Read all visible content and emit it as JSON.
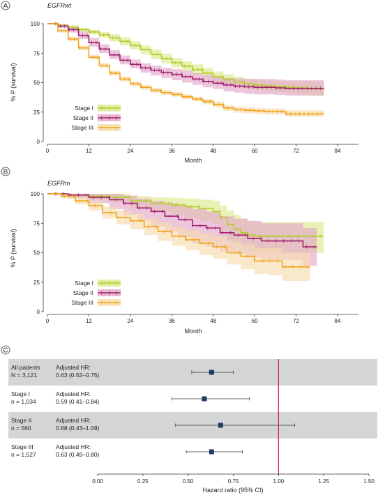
{
  "colors": {
    "stage_i": "#b5cc2a",
    "stage_ii": "#a0206a",
    "stage_iii": "#f2a31b",
    "band_i": "#dde98f",
    "band_ii": "#e3a8cb",
    "band_iii": "#f6dcae",
    "forest_band": "#d4d6d6",
    "forest_marker": "#1e3b66",
    "reference_line": "#c8197a"
  },
  "chart_data": [
    {
      "type": "line",
      "panel_label": "A",
      "title": "EGFRwt",
      "xlabel": "Month",
      "ylabel": "% P (survival)",
      "xlim": [
        0,
        84
      ],
      "ylim": [
        0,
        100
      ],
      "xticks": [
        0,
        12,
        24,
        36,
        48,
        60,
        72,
        84
      ],
      "yticks": [
        0,
        25,
        50,
        75,
        100
      ],
      "legend_position": "lower-left",
      "series": [
        {
          "name": "Stage I",
          "x": [
            0,
            3,
            6,
            9,
            12,
            15,
            18,
            21,
            24,
            27,
            30,
            33,
            36,
            39,
            42,
            45,
            48,
            51,
            54,
            57,
            60,
            63,
            66,
            69,
            72,
            75,
            78,
            80
          ],
          "y": [
            100,
            98.5,
            97,
            95,
            93,
            90.5,
            88,
            85,
            81.5,
            78,
            74,
            70.5,
            67,
            64,
            61,
            58,
            55,
            52.5,
            50.5,
            49,
            48,
            47,
            46.5,
            46,
            45.5,
            45,
            45,
            44
          ],
          "ci_lower": [
            100,
            97.5,
            96,
            93.5,
            91,
            88,
            85,
            81.5,
            78,
            74,
            70,
            66.5,
            63,
            59.5,
            56.5,
            53.5,
            50.5,
            48,
            46,
            44.5,
            43.5,
            42.5,
            42,
            41,
            40,
            39,
            38.5,
            38
          ],
          "ci_upper": [
            100,
            99.5,
            98.5,
            96.5,
            95,
            93,
            91,
            88.5,
            85,
            81.5,
            78,
            74.5,
            71,
            68,
            65.5,
            62.5,
            59.5,
            57,
            55,
            53.5,
            52.5,
            51.5,
            51,
            51,
            51,
            51,
            51,
            50
          ]
        },
        {
          "name": "Stage II",
          "x": [
            0,
            3,
            6,
            9,
            12,
            15,
            18,
            21,
            24,
            27,
            30,
            33,
            36,
            39,
            42,
            45,
            48,
            51,
            54,
            57,
            60,
            63,
            66,
            69,
            72,
            75,
            78,
            80
          ],
          "y": [
            100,
            98,
            95,
            90,
            84,
            78.5,
            73.5,
            69,
            65.5,
            62.5,
            60.5,
            58.5,
            57,
            55,
            53,
            51,
            49.5,
            48,
            47,
            46.5,
            46,
            46,
            45.5,
            45,
            45,
            45,
            45,
            45
          ],
          "ci_lower": [
            100,
            96.5,
            92.5,
            87,
            80.5,
            75,
            70,
            65.5,
            62,
            58.5,
            56,
            54,
            52,
            50,
            48,
            46,
            44.5,
            42.5,
            41.5,
            40.5,
            40,
            40,
            39.5,
            39,
            39,
            39,
            39,
            39
          ],
          "ci_upper": [
            100,
            99.5,
            97.5,
            93.5,
            88,
            82.5,
            77.5,
            73,
            69.5,
            66.5,
            64.5,
            62.5,
            61.5,
            60,
            58,
            56.5,
            55,
            54,
            53.5,
            53,
            53,
            53,
            52.5,
            52,
            52,
            52,
            52,
            52
          ]
        },
        {
          "name": "Stage III",
          "x": [
            0,
            3,
            6,
            9,
            12,
            15,
            18,
            21,
            24,
            27,
            30,
            33,
            36,
            39,
            42,
            45,
            48,
            51,
            54,
            57,
            60,
            63,
            66,
            69,
            72,
            75,
            78,
            80
          ],
          "y": [
            100,
            94,
            87,
            79.5,
            71.5,
            64.5,
            58,
            53,
            49,
            46,
            43.5,
            41.5,
            40,
            38,
            36,
            34,
            31.5,
            28.5,
            27,
            26.5,
            26,
            25.5,
            25.5,
            23.5,
            23.5,
            23.5,
            23.5,
            23.5
          ],
          "ci_lower": [
            100,
            92.5,
            85,
            77.5,
            69.5,
            62.5,
            56,
            51,
            47,
            44,
            41.5,
            39.5,
            38,
            36,
            34,
            31.5,
            29,
            26,
            24.5,
            24,
            23.5,
            23,
            23,
            21,
            21,
            21,
            21,
            21
          ],
          "ci_upper": [
            100,
            95.5,
            89,
            81.5,
            73.5,
            66.5,
            60,
            55,
            51,
            48,
            45.5,
            43.5,
            42,
            40,
            38,
            36,
            34,
            31,
            29.5,
            29,
            28.5,
            28,
            28,
            26.5,
            26.5,
            26.5,
            26.5,
            26.5
          ]
        }
      ]
    },
    {
      "type": "line",
      "panel_label": "B",
      "title": "EGFRm",
      "xlabel": "Month",
      "ylabel": "% P (survival)",
      "xlim": [
        0,
        84
      ],
      "ylim": [
        0,
        100
      ],
      "xticks": [
        0,
        12,
        24,
        36,
        48,
        60,
        72,
        84
      ],
      "yticks": [
        0,
        25,
        50,
        75,
        100
      ],
      "legend_position": "lower-left",
      "series": [
        {
          "name": "Stage I",
          "x": [
            0,
            6,
            12,
            18,
            24,
            30,
            36,
            40,
            44,
            48,
            50,
            52,
            54,
            56,
            58,
            60,
            64,
            70,
            76,
            80
          ],
          "y": [
            100,
            99,
            98,
            97,
            94,
            92,
            90.5,
            89,
            87.5,
            85,
            80,
            74,
            70,
            67,
            65,
            64,
            64,
            64,
            64,
            64
          ],
          "ci_lower": [
            100,
            97,
            95,
            93,
            88,
            85,
            82,
            79,
            77,
            74,
            68,
            61,
            57,
            54,
            52,
            51,
            50,
            50,
            50,
            50
          ],
          "ci_upper": [
            100,
            100,
            100,
            100,
            98,
            97,
            96.5,
            96,
            95,
            94,
            90,
            86,
            82,
            79,
            77,
            76,
            76,
            76,
            76,
            76
          ]
        },
        {
          "name": "Stage II",
          "x": [
            0,
            6,
            12,
            18,
            22,
            26,
            30,
            34,
            38,
            42,
            46,
            50,
            54,
            58,
            62,
            66,
            70,
            74,
            78
          ],
          "y": [
            100,
            99,
            97,
            95,
            92,
            88,
            85,
            81,
            78,
            73,
            71,
            67,
            65,
            62,
            60,
            60,
            60,
            55,
            55
          ],
          "ci_lower": [
            100,
            96,
            92,
            87,
            82,
            77,
            72,
            68,
            63,
            58,
            55,
            51,
            49,
            46,
            44,
            44,
            44,
            39,
            39
          ],
          "ci_upper": [
            100,
            100,
            100,
            100,
            98.5,
            96,
            94,
            92,
            90,
            87,
            85,
            81,
            79,
            77,
            75,
            75,
            75,
            71,
            71
          ]
        },
        {
          "name": "Stage III",
          "x": [
            0,
            4,
            8,
            12,
            16,
            20,
            24,
            28,
            32,
            36,
            40,
            44,
            48,
            52,
            56,
            60,
            64,
            68,
            72,
            76
          ],
          "y": [
            100,
            98,
            94,
            90,
            84,
            80,
            77,
            72,
            68,
            64,
            61,
            58,
            55,
            50,
            47,
            43,
            43,
            38,
            38,
            38
          ],
          "ci_lower": [
            100,
            96,
            91,
            86,
            79,
            74,
            70,
            65,
            60,
            56,
            52,
            48,
            45,
            40,
            36,
            32,
            31,
            26,
            26,
            26
          ],
          "ci_upper": [
            100,
            99.5,
            97,
            94,
            89,
            86,
            83,
            79,
            76,
            72,
            69,
            66,
            64,
            60,
            57,
            54,
            54,
            50,
            50,
            50
          ]
        }
      ]
    },
    {
      "type": "forest",
      "panel_label": "C",
      "xlabel": "Hazard ratio (95% CI)",
      "xlim": [
        0,
        1.5
      ],
      "xticks": [
        0,
        0.25,
        0.5,
        0.75,
        1.0,
        1.25,
        1.5
      ],
      "xtick_labels": [
        "0.00",
        "0.25",
        "0.50",
        "0.75",
        "1.00",
        "1.25",
        "1.50"
      ],
      "reference_value": 1.0,
      "rows": [
        {
          "group": "All patients",
          "n": "N = 3,121",
          "hr_label": "Adjusted HR:",
          "hr_text": "0.63 (0.52–0.75)",
          "hr": 0.63,
          "lower": 0.52,
          "upper": 0.75,
          "shaded": true
        },
        {
          "group": "Stage I",
          "n": "n = 1,034",
          "hr_label": "Adjusted HR:",
          "hr_text": "0.59 (0.41–0.84)",
          "hr": 0.59,
          "lower": 0.41,
          "upper": 0.84,
          "shaded": false
        },
        {
          "group": "Stage II",
          "n": "n = 560",
          "hr_label": "Adjusted HR:",
          "hr_text": "0.68 (0.43–1.09)",
          "hr": 0.68,
          "lower": 0.43,
          "upper": 1.09,
          "shaded": true
        },
        {
          "group": "Stage III",
          "n": "n = 1,527",
          "hr_label": "Adjusted HR:",
          "hr_text": "0.63 (0.49–0.80)",
          "hr": 0.63,
          "lower": 0.49,
          "upper": 0.8,
          "shaded": false
        }
      ]
    }
  ]
}
